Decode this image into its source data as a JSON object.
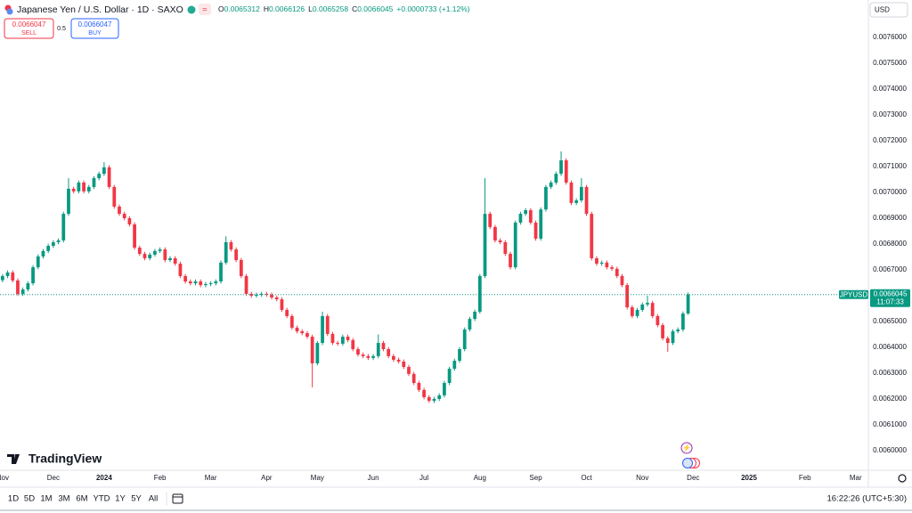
{
  "header": {
    "symbol": "Japanese Yen / U.S. Dollar · 1D · SAXO",
    "ohlc": [
      {
        "key": "O",
        "value": "0.0065312"
      },
      {
        "key": "H",
        "value": "0.0066126"
      },
      {
        "key": "L",
        "value": "0.0065258"
      },
      {
        "key": "C",
        "value": "0.0066045"
      }
    ],
    "change": "+0.0000733 (+1.12%)",
    "currency": "USD"
  },
  "trade": {
    "sell_price": "0.0066047",
    "sell_label": "SELL",
    "spread": "0.5",
    "buy_price": "0.0066047",
    "buy_label": "BUY"
  },
  "branding": "TradingView",
  "toolbar": {
    "ranges": [
      "1D",
      "5D",
      "1M",
      "3M",
      "6M",
      "YTD",
      "1Y",
      "5Y",
      "All"
    ],
    "clock": "16:22:26 (UTC+5:30)"
  },
  "chart_data": {
    "type": "candlestick",
    "up_color": "#089981",
    "down_color": "#f23645",
    "grid": false,
    "symbol_tag": "JPYUSD",
    "countdown": "11:07:33",
    "last_price": {
      "value": 0.0066045,
      "label": "0.0066045"
    },
    "ylim": [
      0.005924,
      0.007745
    ],
    "yticks": [
      {
        "value": 0.006,
        "label": "0.0060000"
      },
      {
        "value": 0.0061,
        "label": "0.0061000"
      },
      {
        "value": 0.0062,
        "label": "0.0062000"
      },
      {
        "value": 0.0063,
        "label": "0.0063000"
      },
      {
        "value": 0.0064,
        "label": "0.0064000"
      },
      {
        "value": 0.0065,
        "label": "0.0065000"
      },
      {
        "value": 0.0066,
        "label": "0.0066000"
      },
      {
        "value": 0.0067,
        "label": "0.0067000"
      },
      {
        "value": 0.0068,
        "label": "0.0068000"
      },
      {
        "value": 0.0069,
        "label": "0.0069000"
      },
      {
        "value": 0.007,
        "label": "0.0070000"
      },
      {
        "value": 0.0071,
        "label": "0.0071000"
      },
      {
        "value": 0.0072,
        "label": "0.0072000"
      },
      {
        "value": 0.0073,
        "label": "0.0073000"
      },
      {
        "value": 0.0074,
        "label": "0.0074000"
      },
      {
        "value": 0.0075,
        "label": "0.0075000"
      },
      {
        "value": 0.0076,
        "label": "0.0076000"
      }
    ],
    "categories": [
      "Nov",
      null,
      null,
      null,
      null,
      null,
      null,
      null,
      null,
      null,
      "Dec",
      null,
      null,
      null,
      null,
      null,
      null,
      null,
      null,
      null,
      "2024",
      null,
      null,
      null,
      null,
      null,
      null,
      null,
      null,
      null,
      null,
      "Feb",
      null,
      null,
      null,
      null,
      null,
      null,
      null,
      null,
      null,
      "Mar",
      null,
      null,
      null,
      null,
      null,
      null,
      null,
      null,
      null,
      null,
      "Apr",
      null,
      null,
      null,
      null,
      null,
      null,
      null,
      null,
      null,
      "May",
      null,
      null,
      null,
      null,
      null,
      null,
      null,
      null,
      null,
      null,
      "Jun",
      null,
      null,
      null,
      null,
      null,
      null,
      null,
      null,
      null,
      "Jul",
      null,
      null,
      null,
      null,
      null,
      null,
      null,
      null,
      null,
      null,
      "Aug",
      null,
      null,
      null,
      null,
      null,
      null,
      null,
      null,
      null,
      null,
      "Sep",
      null,
      null,
      null,
      null,
      null,
      null,
      null,
      null,
      null,
      "Oct",
      null,
      null,
      null,
      null,
      null,
      null,
      null,
      null,
      null,
      null,
      "Nov",
      null,
      null,
      null,
      null,
      null,
      null,
      null,
      null,
      null,
      "Dec",
      null,
      null,
      null,
      null,
      null,
      null,
      null,
      null,
      null,
      null,
      "2025",
      null,
      null,
      null,
      null,
      null,
      null,
      null,
      null,
      null,
      null,
      "Feb",
      null,
      null,
      null,
      null,
      null,
      null,
      null,
      null,
      null,
      "Mar",
      null,
      null
    ],
    "open": [
      0.00666,
      0.006676,
      0.00669,
      0.006659,
      0.006607,
      0.006624,
      0.006648,
      0.00671,
      0.006752,
      0.006773,
      0.006793,
      0.006807,
      0.006814,
      0.006917,
      0.007014,
      0.007004,
      0.007038,
      0.007004,
      0.007021,
      0.007055,
      0.007072,
      0.007097,
      0.007021,
      0.006945,
      0.006917,
      0.0069,
      0.006876,
      0.006786,
      0.006762,
      0.006745,
      0.006759,
      0.006773,
      0.006779,
      0.006738,
      0.006745,
      0.006724,
      0.006676,
      0.006655,
      0.006648,
      0.006655,
      0.006641,
      0.006645,
      0.006648,
      0.006655,
      0.006728,
      0.006807,
      0.006779,
      0.006738,
      0.006676,
      0.006607,
      0.0066,
      0.006604,
      0.006607,
      0.006604,
      0.006593,
      0.006586,
      0.006545,
      0.006521,
      0.006476,
      0.006462,
      0.006455,
      0.006441,
      0.006338,
      0.006417,
      0.006521,
      0.006452,
      0.006417,
      0.006414,
      0.006441,
      0.006428,
      0.006393,
      0.006372,
      0.006366,
      0.006359,
      0.006366,
      0.006417,
      0.006393,
      0.006366,
      0.006352,
      0.006345,
      0.006324,
      0.006297,
      0.006262,
      0.006235,
      0.006207,
      0.006193,
      0.0062,
      0.006214,
      0.006262,
      0.006317,
      0.006348,
      0.006393,
      0.006469,
      0.00651,
      0.006538,
      0.006676,
      0.006917,
      0.006866,
      0.006814,
      0.006807,
      0.006762,
      0.00671,
      0.006883,
      0.006917,
      0.006931,
      0.006883,
      0.006821,
      0.006934,
      0.007021,
      0.007038,
      0.007072,
      0.007124,
      0.007038,
      0.006959,
      0.006969,
      0.007021,
      0.006917,
      0.006745,
      0.006724,
      0.006728,
      0.00671,
      0.006704,
      0.006676,
      0.006641,
      0.006555,
      0.006521,
      0.006545,
      0.006566,
      0.006572,
      0.006521,
      0.006486,
      0.006435,
      0.006417,
      0.006462,
      0.006469,
      0.0065312,
      null,
      null,
      null,
      null,
      null,
      null,
      null,
      null,
      null,
      null,
      null,
      null,
      null,
      null,
      null,
      null,
      null,
      null,
      null,
      null,
      null,
      null,
      null,
      null,
      null,
      null,
      null,
      null,
      null,
      null,
      null,
      null,
      null,
      null,
      null
    ],
    "high": [
      0.006684,
      0.006698,
      0.006698,
      0.006667,
      0.006632,
      0.006656,
      0.006718,
      0.00676,
      0.006781,
      0.006801,
      0.006815,
      0.006822,
      0.006925,
      0.007055,
      0.007022,
      0.007046,
      0.007046,
      0.007029,
      0.007063,
      0.00708,
      0.007117,
      0.007105,
      0.007029,
      0.006953,
      0.006925,
      0.006908,
      0.006884,
      0.006794,
      0.00677,
      0.006767,
      0.006781,
      0.006787,
      0.006787,
      0.006753,
      0.006753,
      0.006732,
      0.006684,
      0.006663,
      0.006663,
      0.006663,
      0.006653,
      0.006656,
      0.006663,
      0.006736,
      0.00683,
      0.006815,
      0.006787,
      0.006746,
      0.006684,
      0.006615,
      0.006612,
      0.006615,
      0.006615,
      0.006612,
      0.006601,
      0.006594,
      0.006553,
      0.006529,
      0.006484,
      0.00647,
      0.006463,
      0.006449,
      0.006425,
      0.006538,
      0.006529,
      0.00646,
      0.006425,
      0.006449,
      0.006449,
      0.006436,
      0.006401,
      0.00638,
      0.006374,
      0.006374,
      0.00645,
      0.006425,
      0.006401,
      0.006374,
      0.00636,
      0.006353,
      0.006332,
      0.006305,
      0.00627,
      0.006243,
      0.006215,
      0.006208,
      0.006222,
      0.00627,
      0.006325,
      0.006356,
      0.006401,
      0.006477,
      0.006518,
      0.006546,
      0.006684,
      0.007055,
      0.006925,
      0.006874,
      0.006822,
      0.006815,
      0.00677,
      0.006891,
      0.006925,
      0.006939,
      0.006939,
      0.006891,
      0.006942,
      0.007029,
      0.007046,
      0.00708,
      0.007159,
      0.007132,
      0.007046,
      0.006977,
      0.007055,
      0.007029,
      0.006925,
      0.006753,
      0.006736,
      0.006736,
      0.006718,
      0.006712,
      0.006684,
      0.006649,
      0.006563,
      0.006553,
      0.006574,
      0.0066,
      0.00658,
      0.006529,
      0.006494,
      0.006443,
      0.00647,
      0.006477,
      0.006539,
      0.0066126,
      null,
      null,
      null,
      null,
      null,
      null,
      null,
      null,
      null,
      null,
      null,
      null,
      null,
      null,
      null,
      null,
      null,
      null,
      null,
      null,
      null,
      null,
      null,
      null,
      null,
      null,
      null,
      null,
      null,
      null,
      null,
      null,
      null,
      null,
      null
    ],
    "low": [
      0.006652,
      0.006668,
      0.006651,
      0.006599,
      0.006599,
      0.006616,
      0.00664,
      0.006702,
      0.006744,
      0.006765,
      0.006785,
      0.006799,
      0.006806,
      0.006909,
      0.006996,
      0.006996,
      0.006996,
      0.006996,
      0.007013,
      0.007047,
      0.007064,
      0.007013,
      0.006937,
      0.006909,
      0.006892,
      0.006868,
      0.006778,
      0.006754,
      0.006737,
      0.006737,
      0.006751,
      0.006765,
      0.00673,
      0.00673,
      0.006716,
      0.006668,
      0.006647,
      0.00664,
      0.00664,
      0.006633,
      0.006633,
      0.006637,
      0.00664,
      0.006647,
      0.00672,
      0.006771,
      0.00673,
      0.006668,
      0.006599,
      0.006592,
      0.006592,
      0.006596,
      0.006596,
      0.006585,
      0.006578,
      0.006537,
      0.006513,
      0.006468,
      0.006454,
      0.006447,
      0.006433,
      0.006245,
      0.00633,
      0.006409,
      0.006444,
      0.006409,
      0.006406,
      0.006406,
      0.00642,
      0.006385,
      0.006364,
      0.006358,
      0.006351,
      0.006351,
      0.006358,
      0.006385,
      0.006358,
      0.006344,
      0.006337,
      0.006316,
      0.006289,
      0.006254,
      0.006227,
      0.006199,
      0.006185,
      0.006185,
      0.006192,
      0.006206,
      0.006254,
      0.006309,
      0.00634,
      0.006385,
      0.006461,
      0.006502,
      0.00653,
      0.006668,
      0.006858,
      0.006806,
      0.006799,
      0.006754,
      0.006702,
      0.006702,
      0.006875,
      0.006909,
      0.006875,
      0.006813,
      0.006813,
      0.006926,
      0.007013,
      0.00703,
      0.007064,
      0.00703,
      0.006951,
      0.006951,
      0.006961,
      0.006909,
      0.006737,
      0.006716,
      0.006716,
      0.006702,
      0.006696,
      0.006668,
      0.006633,
      0.006547,
      0.006513,
      0.006513,
      0.006537,
      0.006558,
      0.006513,
      0.006478,
      0.006427,
      0.006383,
      0.006409,
      0.006454,
      0.006461,
      0.0065258,
      null,
      null,
      null,
      null,
      null,
      null,
      null,
      null,
      null,
      null,
      null,
      null,
      null,
      null,
      null,
      null,
      null,
      null,
      null,
      null,
      null,
      null,
      null,
      null,
      null,
      null,
      null,
      null,
      null,
      null,
      null,
      null,
      null,
      null,
      null
    ],
    "close": [
      0.006676,
      0.00669,
      0.006659,
      0.006607,
      0.006624,
      0.006648,
      0.00671,
      0.006752,
      0.006773,
      0.006793,
      0.006807,
      0.006814,
      0.006917,
      0.007014,
      0.007004,
      0.007038,
      0.007004,
      0.007021,
      0.007055,
      0.007072,
      0.007097,
      0.007021,
      0.006945,
      0.006917,
      0.0069,
      0.006876,
      0.006786,
      0.006762,
      0.006745,
      0.006759,
      0.006773,
      0.006779,
      0.006738,
      0.006745,
      0.006724,
      0.006676,
      0.006655,
      0.006648,
      0.006655,
      0.006641,
      0.006645,
      0.006648,
      0.006655,
      0.006728,
      0.006807,
      0.006779,
      0.006738,
      0.006676,
      0.006607,
      0.0066,
      0.006604,
      0.006607,
      0.006604,
      0.006593,
      0.006586,
      0.006545,
      0.006521,
      0.006476,
      0.006462,
      0.006455,
      0.006441,
      0.006338,
      0.006417,
      0.006521,
      0.006452,
      0.006417,
      0.006414,
      0.006441,
      0.006428,
      0.006393,
      0.006372,
      0.006366,
      0.006359,
      0.006366,
      0.006417,
      0.006393,
      0.006366,
      0.006352,
      0.006345,
      0.006324,
      0.006297,
      0.006262,
      0.006235,
      0.006207,
      0.006193,
      0.0062,
      0.006214,
      0.006262,
      0.006317,
      0.006348,
      0.006393,
      0.006469,
      0.00651,
      0.006538,
      0.006676,
      0.006917,
      0.006866,
      0.006814,
      0.006807,
      0.006762,
      0.00671,
      0.006883,
      0.006917,
      0.006931,
      0.006883,
      0.006821,
      0.006934,
      0.007021,
      0.007038,
      0.007072,
      0.007124,
      0.007038,
      0.006959,
      0.006969,
      0.007021,
      0.006917,
      0.006745,
      0.006724,
      0.006728,
      0.00671,
      0.006704,
      0.006676,
      0.006641,
      0.006555,
      0.006521,
      0.006545,
      0.006566,
      0.006572,
      0.006521,
      0.006486,
      0.006435,
      0.006417,
      0.006462,
      0.006469,
      0.006531,
      0.0066045,
      null,
      null,
      null,
      null,
      null,
      null,
      null,
      null,
      null,
      null,
      null,
      null,
      null,
      null,
      null,
      null,
      null,
      null,
      null,
      null,
      null,
      null,
      null,
      null,
      null,
      null,
      null,
      null,
      null,
      null,
      null,
      null,
      null,
      null,
      null
    ]
  }
}
